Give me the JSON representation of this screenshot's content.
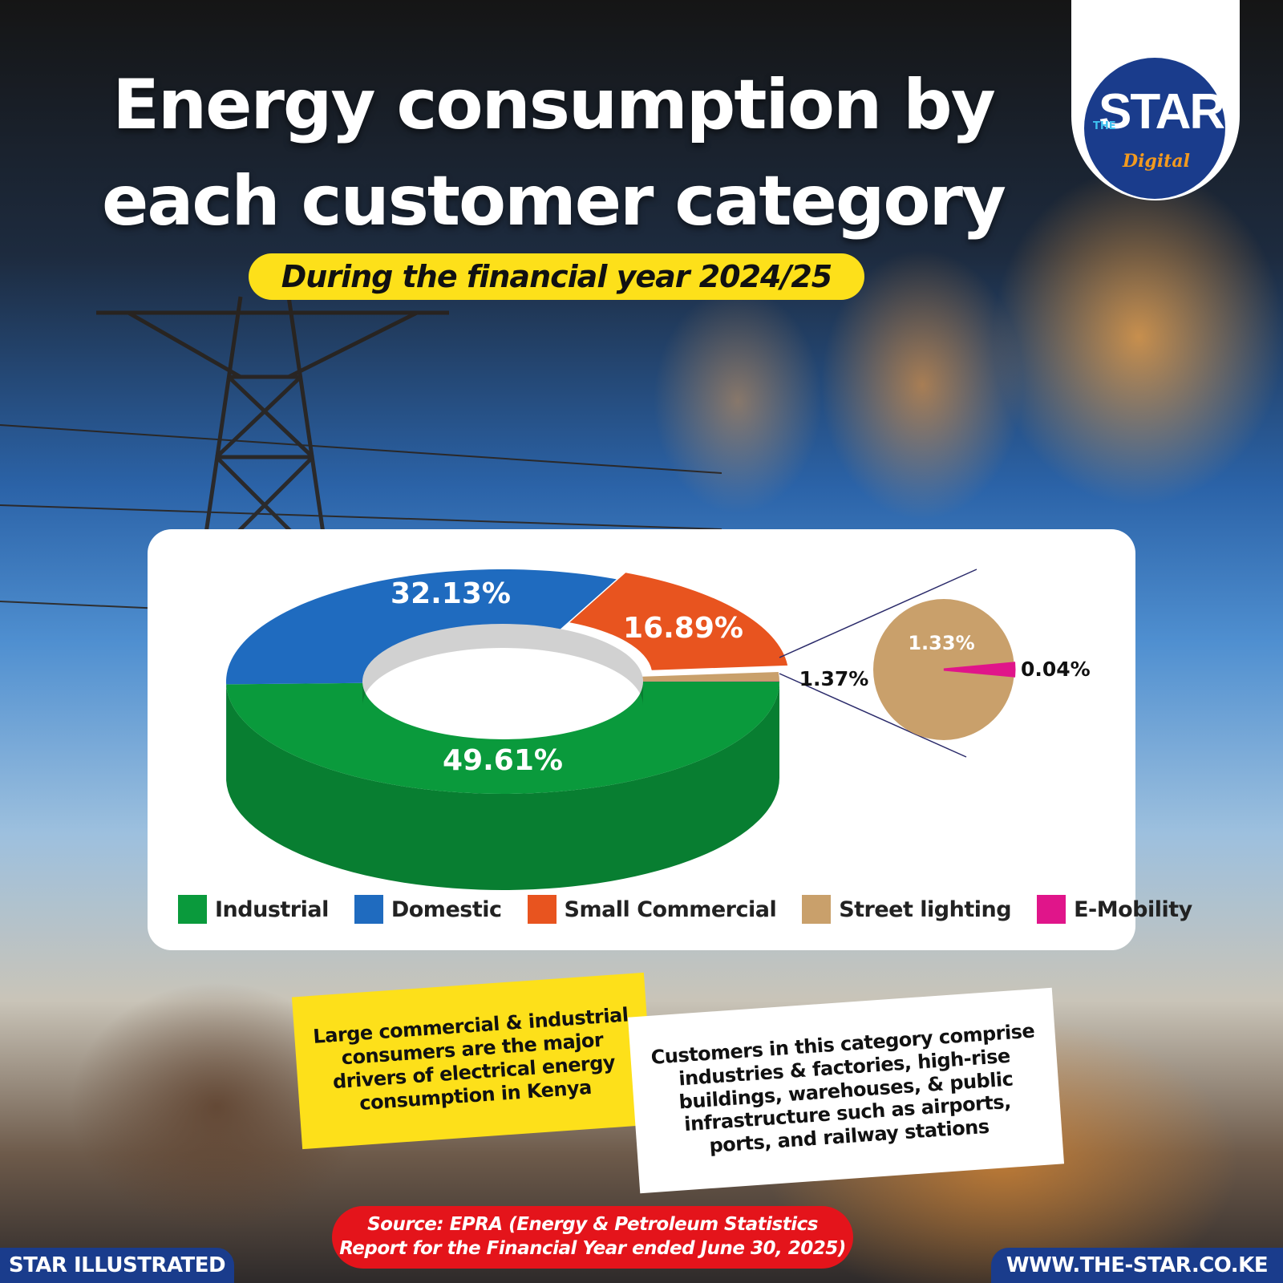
{
  "header": {
    "title_line1": "Energy consumption by",
    "title_line2": "each customer category",
    "subtitle": "During the financial year 2024/25"
  },
  "logo": {
    "the": "THE",
    "star": "STAR",
    "digital": "Digital"
  },
  "chart_data": {
    "type": "pie",
    "categories": [
      "Industrial",
      "Domestic",
      "Small Commercial",
      "Street lighting",
      "E-Mobility"
    ],
    "values": [
      49.61,
      32.13,
      16.89,
      1.33,
      0.04
    ],
    "value_labels": [
      "49.61%",
      "32.13%",
      "16.89%",
      "1.33%",
      "0.04%"
    ],
    "combined_label": "1.37%",
    "colors": [
      "#0a9a3c",
      "#1f6bbf",
      "#e8541f",
      "#c9a06b",
      "#e0158a"
    ],
    "legend_position": "bottom"
  },
  "notes": {
    "yellow": "Large commercial & industrial consumers are the major drivers of electrical energy consumption in Kenya",
    "white": "Customers in this category comprise industries & factories, high-rise buildings, warehouses, & public infrastructure such as airports, ports, and railway stations"
  },
  "source": "Source: EPRA (Energy & Petroleum Statistics Report for the Financial Year ended June 30, 2025)",
  "footer": {
    "left": "STAR ILLUSTRATED",
    "right": "WWW.THE-STAR.CO.KE"
  },
  "colors": {
    "brand_blue": "#1a3c8c",
    "accent_yellow": "#fde01a",
    "accent_red": "#e4141b"
  }
}
